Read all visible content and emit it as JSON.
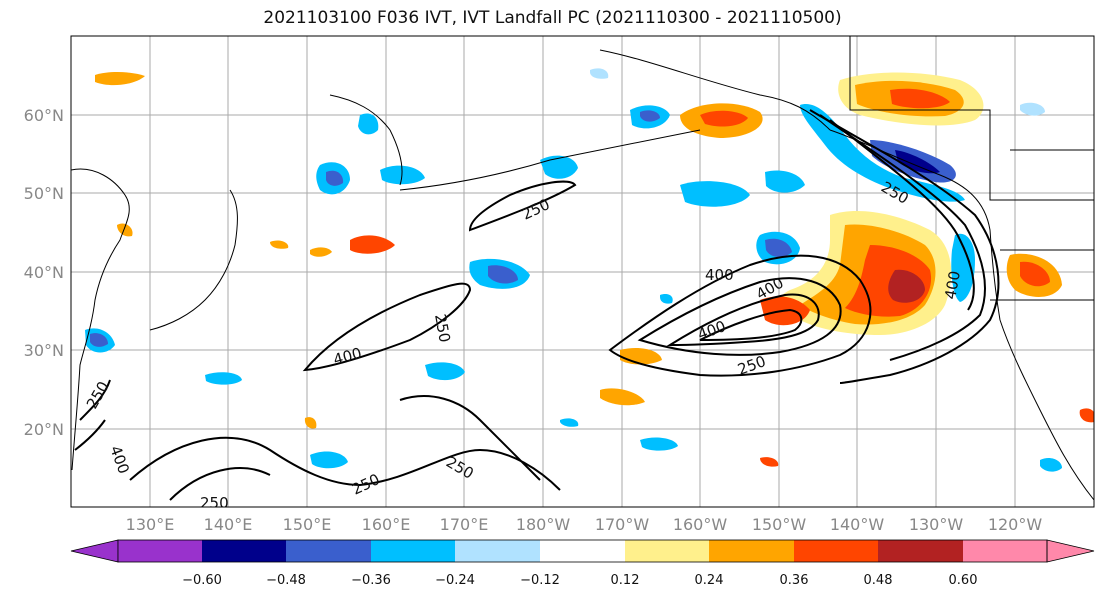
{
  "title": "2021103100 F036 IVT, IVT Landfall PC (2021110300 - 2021110500)",
  "lat_labels": [
    "60°N",
    "50°N",
    "40°N",
    "30°N",
    "20°N"
  ],
  "lon_labels": [
    "130°E",
    "140°E",
    "150°E",
    "160°E",
    "170°E",
    "180°W",
    "170°W",
    "160°W",
    "150°W",
    "140°W",
    "130°W",
    "120°W"
  ],
  "contour_labels": [
    "250",
    "400",
    "250",
    "400",
    "250",
    "400",
    "250",
    "250",
    "250",
    "400",
    "250",
    "400",
    "250",
    "400"
  ],
  "colorbar": {
    "ticks": [
      "−0.60",
      "−0.48",
      "−0.36",
      "−0.24",
      "−0.12",
      "0.12",
      "0.24",
      "0.36",
      "0.48",
      "0.60"
    ],
    "colors": [
      "#9932cc",
      "#00008b",
      "#3a5fcd",
      "#00bfff",
      "#b0e2ff",
      "#ffffff",
      "#fff08c",
      "#ffa500",
      "#ff4500",
      "#b22222",
      "#ff88aa"
    ]
  }
}
